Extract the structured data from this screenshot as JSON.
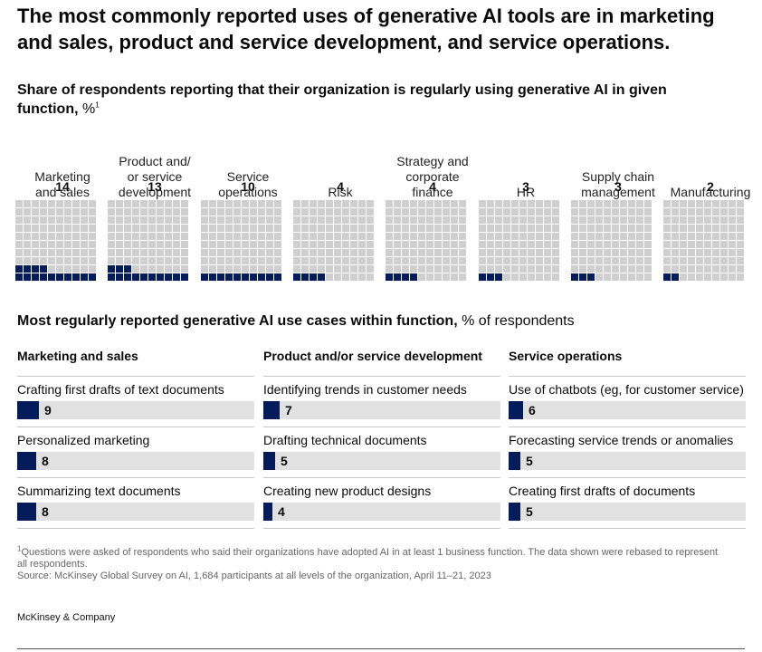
{
  "title": "The most commonly reported uses of generative AI tools are in marketing and sales, product and service development, and service operations.",
  "subtitle": {
    "bold": "Share of respondents reporting that their organization is regularly using generative AI in given function,",
    "unit": "%",
    "footnote_mark": "1"
  },
  "colors": {
    "filled": "#051c5c",
    "empty": "#cfcfcf",
    "bar_track": "#e1e1e1"
  },
  "chart_data": [
    {
      "type": "waffle",
      "title": "Share of respondents reporting that their organization is regularly using generative AI in given function, %",
      "unit": "%",
      "grid": {
        "columns": 10,
        "rows": 10
      },
      "categories": [
        "Marketing and sales",
        "Product and/ or service development",
        "Service operations",
        "Risk",
        "Strategy and corporate finance",
        "HR",
        "Supply chain management",
        "Manufacturing"
      ],
      "label_lines": [
        [
          "Marketing",
          "and sales"
        ],
        [
          "Product and/",
          "or service",
          "development"
        ],
        [
          "Service",
          "operations"
        ],
        [
          "Risk"
        ],
        [
          "Strategy and",
          "corporate",
          "finance"
        ],
        [
          "HR"
        ],
        [
          "Supply chain",
          "management"
        ],
        [
          "Manufacturing"
        ]
      ],
      "values": [
        14,
        13,
        10,
        4,
        4,
        3,
        3,
        2
      ]
    },
    {
      "type": "bar",
      "orientation": "horizontal",
      "title": "Most regularly reported generative AI use cases within function, % of respondents",
      "unit": "% of respondents",
      "groups": [
        {
          "name": "Marketing and sales",
          "categories": [
            "Crafting first drafts of text documents",
            "Personalized marketing",
            "Summarizing text documents"
          ],
          "values": [
            9,
            8,
            8
          ]
        },
        {
          "name": "Product and/or service development",
          "categories": [
            "Identifying trends in customer needs",
            "Drafting technical documents",
            "Creating new product designs"
          ],
          "values": [
            7,
            5,
            4
          ]
        },
        {
          "name": "Service operations",
          "categories": [
            "Use of chatbots (eg, for customer service)",
            "Forecasting service trends or anomalies",
            "Creating first drafts of documents"
          ],
          "values": [
            6,
            5,
            5
          ]
        }
      ],
      "xlim": [
        0,
        100
      ]
    }
  ],
  "section2": {
    "bold": "Most regularly reported generative AI use cases within function,",
    "unit": "% of respondents"
  },
  "footnote": {
    "mark": "1",
    "text": "Questions were asked of respondents who said their organizations have adopted AI in at least 1 business function. The data shown were rebased to represent all respondents.",
    "source": "Source: McKinsey Global Survey on AI, 1,684 participants at all levels of the organization, April 11–21, 2023"
  },
  "brand": "McKinsey & Company"
}
